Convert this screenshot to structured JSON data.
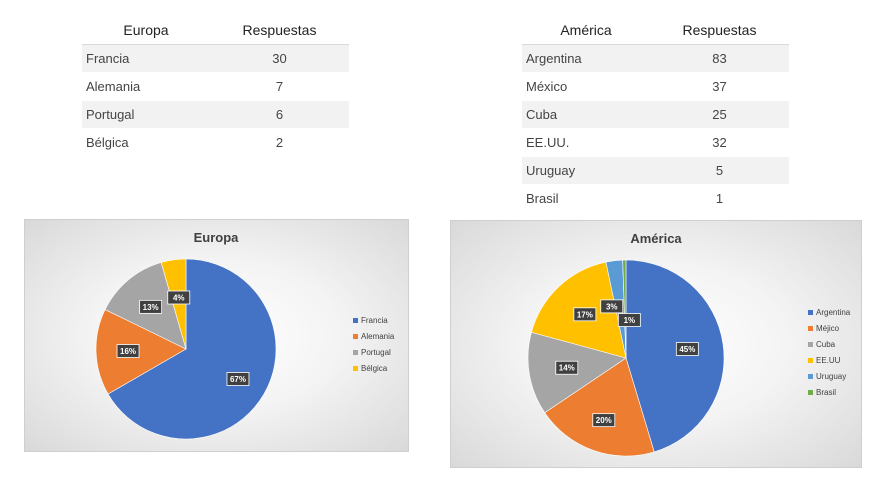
{
  "tables": [
    {
      "header": [
        "Europa",
        "Respuestas"
      ],
      "rows": [
        {
          "name": "Francia",
          "value": "30"
        },
        {
          "name": "Alemania",
          "value": "7"
        },
        {
          "name": "Portugal",
          "value": "6"
        },
        {
          "name": "Bélgica",
          "value": "2"
        }
      ]
    },
    {
      "header": [
        "América",
        "Respuestas"
      ],
      "rows": [
        {
          "name": "Argentina",
          "value": "83"
        },
        {
          "name": "México",
          "value": "37"
        },
        {
          "name": "Cuba",
          "value": "25"
        },
        {
          "name": "EE.UU.",
          "value": "32"
        },
        {
          "name": "Uruguay",
          "value": "5"
        },
        {
          "name": "Brasil",
          "value": "1"
        }
      ]
    }
  ],
  "chart_data": [
    {
      "type": "pie",
      "title": "Europa",
      "legend_position": "right",
      "categories": [
        "Francia",
        "Alemania",
        "Portugal",
        "Bélgica"
      ],
      "values": [
        30,
        7,
        6,
        2
      ],
      "data_labels": [
        "67%",
        "16%",
        "13%",
        "4%"
      ],
      "colors": [
        "#4472c4",
        "#ed7d31",
        "#a5a5a5",
        "#ffc000"
      ]
    },
    {
      "type": "pie",
      "title": "América",
      "legend_position": "right",
      "categories": [
        "Argentina",
        "Méjico",
        "Cuba",
        "EE.UU",
        "Uruguay",
        "Brasil"
      ],
      "values": [
        83,
        37,
        25,
        32,
        5,
        1
      ],
      "data_labels": [
        "45%",
        "20%",
        "14%",
        "17%",
        "3%",
        "1%"
      ],
      "colors": [
        "#4472c4",
        "#ed7d31",
        "#a5a5a5",
        "#ffc000",
        "#5b9bd5",
        "#70ad47"
      ]
    }
  ]
}
